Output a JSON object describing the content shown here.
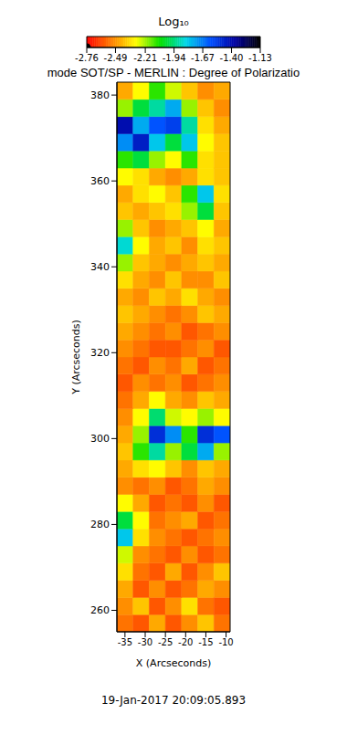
{
  "chart_data": {
    "type": "heatmap",
    "title": "mode SOT/SP - MERLIN : Degree of Polarizatio",
    "x_label": "X (Arcseconds)",
    "y_label": "Y (Arcseconds)",
    "xlim": [
      -37,
      -9
    ],
    "ylim": [
      255,
      383
    ],
    "xticks": [
      -35,
      -30,
      -25,
      -20,
      -15,
      -10
    ],
    "yticks": [
      260,
      280,
      300,
      320,
      340,
      360,
      380
    ],
    "annotations": [
      "19-Jan-2017 20:09:05.893"
    ],
    "heatmap": {
      "x_edges": [
        -37,
        -33,
        -29,
        -25,
        -21,
        -17,
        -13,
        -9
      ],
      "y_edges": [
        255,
        259,
        263,
        267,
        271,
        275,
        279,
        283,
        287,
        291,
        295,
        299,
        303,
        307,
        311,
        315,
        319,
        323,
        327,
        331,
        335,
        339,
        343,
        347,
        351,
        355,
        359,
        363,
        367,
        371,
        375,
        379,
        383
      ],
      "cells": [
        [
          -2.55,
          -2.6,
          -2.45,
          -2.6,
          -2.5,
          -2.4,
          -2.55
        ],
        [
          -2.5,
          -2.4,
          -2.6,
          -2.5,
          -2.35,
          -2.55,
          -2.6
        ],
        [
          -2.45,
          -2.6,
          -2.5,
          -2.6,
          -2.55,
          -2.45,
          -2.5
        ],
        [
          -2.35,
          -2.55,
          -2.6,
          -2.45,
          -2.6,
          -2.5,
          -2.4
        ],
        [
          -2.25,
          -2.5,
          -2.55,
          -2.6,
          -2.5,
          -2.6,
          -2.55
        ],
        [
          -1.8,
          -2.35,
          -2.5,
          -2.55,
          -2.6,
          -2.55,
          -2.5
        ],
        [
          -2.0,
          -2.3,
          -2.55,
          -2.5,
          -2.45,
          -2.6,
          -2.55
        ],
        [
          -2.3,
          -2.45,
          -2.6,
          -2.55,
          -2.6,
          -2.5,
          -2.6
        ],
        [
          -2.5,
          -2.55,
          -2.5,
          -2.6,
          -2.55,
          -2.45,
          -2.5
        ],
        [
          -2.45,
          -2.35,
          -2.3,
          -2.4,
          -2.5,
          -2.4,
          -2.45
        ],
        [
          -2.4,
          -2.1,
          -1.9,
          -2.2,
          -2.0,
          -1.75,
          -2.2
        ],
        [
          -2.45,
          -2.2,
          -1.5,
          -1.7,
          -2.1,
          -1.5,
          -1.6
        ],
        [
          -2.5,
          -2.3,
          -1.95,
          -2.25,
          -2.3,
          -2.2,
          -2.3
        ],
        [
          -2.55,
          -2.45,
          -2.3,
          -2.45,
          -2.5,
          -2.4,
          -2.45
        ],
        [
          -2.6,
          -2.5,
          -2.55,
          -2.5,
          -2.6,
          -2.55,
          -2.5
        ],
        [
          -2.55,
          -2.6,
          -2.5,
          -2.55,
          -2.45,
          -2.6,
          -2.55
        ],
        [
          -2.5,
          -2.55,
          -2.6,
          -2.6,
          -2.55,
          -2.5,
          -2.6
        ],
        [
          -2.45,
          -2.5,
          -2.55,
          -2.5,
          -2.6,
          -2.55,
          -2.5
        ],
        [
          -2.4,
          -2.45,
          -2.5,
          -2.55,
          -2.5,
          -2.4,
          -2.45
        ],
        [
          -2.45,
          -2.5,
          -2.4,
          -2.45,
          -2.35,
          -2.45,
          -2.5
        ],
        [
          -2.35,
          -2.45,
          -2.5,
          -2.4,
          -2.5,
          -2.5,
          -2.4
        ],
        [
          -2.2,
          -2.4,
          -2.45,
          -2.5,
          -2.45,
          -2.4,
          -2.45
        ],
        [
          -1.85,
          -2.3,
          -2.45,
          -2.4,
          -2.5,
          -2.35,
          -2.4
        ],
        [
          -2.2,
          -2.4,
          -2.5,
          -2.45,
          -2.4,
          -2.3,
          -2.45
        ],
        [
          -2.4,
          -2.45,
          -2.4,
          -2.35,
          -2.2,
          -2.0,
          -2.4
        ],
        [
          -2.45,
          -2.35,
          -2.3,
          -2.4,
          -2.1,
          -1.8,
          -2.35
        ],
        [
          -2.3,
          -2.35,
          -2.45,
          -2.5,
          -2.45,
          -2.35,
          -2.4
        ],
        [
          -2.1,
          -2.0,
          -2.2,
          -2.3,
          -2.1,
          -2.35,
          -2.4
        ],
        [
          -1.7,
          -1.45,
          -1.8,
          -2.0,
          -1.8,
          -2.3,
          -2.4
        ],
        [
          -1.4,
          -1.75,
          -1.6,
          -1.55,
          -1.9,
          -2.35,
          -2.45
        ],
        [
          -2.2,
          -2.0,
          -1.9,
          -1.75,
          -2.2,
          -2.4,
          -2.5
        ],
        [
          -2.45,
          -2.3,
          -2.1,
          -2.25,
          -2.4,
          -2.5,
          -2.45
        ]
      ]
    },
    "colorbar": {
      "label": "Log₁₀",
      "range": [
        -2.76,
        -1.13
      ],
      "ticks": [
        -2.76,
        -2.49,
        -2.21,
        -1.94,
        -1.67,
        {
          "value": -1.4,
          "label": "-1.40"
        },
        -1.13
      ],
      "colors": [
        "#ff0000",
        "#ff7f00",
        "#ffff00",
        "#00e000",
        "#00d8e8",
        "#0050ff",
        "#0000a0",
        "#000000"
      ]
    }
  }
}
